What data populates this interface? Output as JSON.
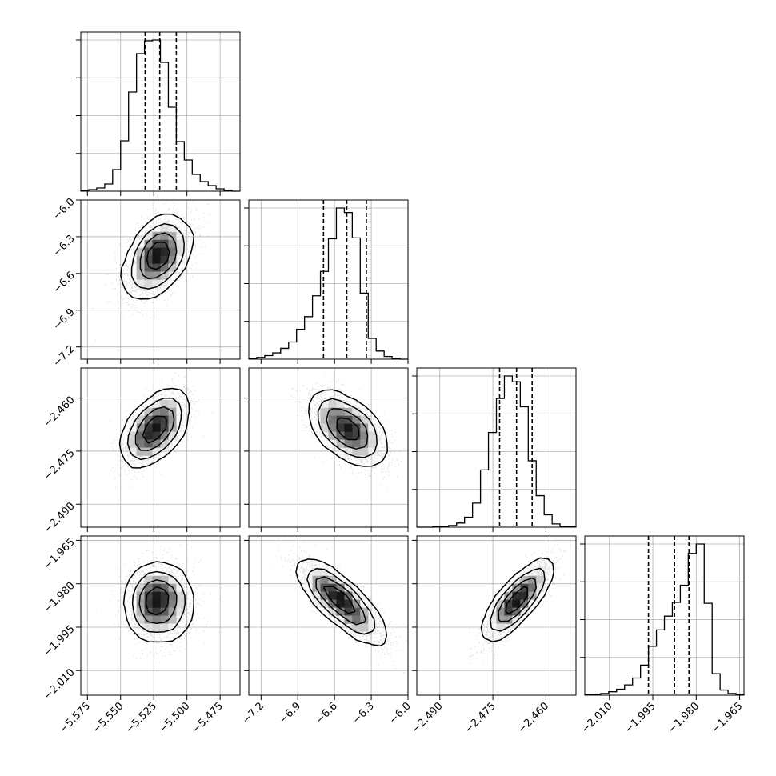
{
  "chart_data": {
    "type": "corner",
    "description_free": true,
    "title": "",
    "params": [
      {
        "ticks": [
          -5.575,
          -5.55,
          -5.525,
          -5.5,
          -5.475
        ],
        "tick_labels": [
          "−5.575",
          "−5.550",
          "−5.525",
          "−5.500",
          "−5.475"
        ],
        "range": [
          -5.58,
          -5.46
        ],
        "quantiles": [
          -5.5315,
          -5.5205,
          -5.508
        ],
        "hist": [
          1,
          2,
          4,
          9,
          27,
          63,
          124,
          172,
          188,
          189,
          161,
          105,
          62,
          39,
          21,
          12,
          7,
          3,
          1,
          0
        ]
      },
      {
        "ticks": [
          -7.2,
          -6.9,
          -6.6,
          -6.3,
          -6.0
        ],
        "tick_labels": [
          "−7.2",
          "−6.9",
          "−6.6",
          "−6.3",
          "−6.0"
        ],
        "range": [
          -7.3,
          -6.0
        ],
        "quantiles": [
          -6.69,
          -6.5,
          -6.34
        ],
        "hist": [
          1,
          2,
          4,
          7,
          12,
          19,
          33,
          47,
          70,
          97,
          133,
          167,
          162,
          134,
          73,
          23,
          9,
          3,
          1,
          0
        ]
      },
      {
        "ticks": [
          -2.49,
          -2.475,
          -2.46
        ],
        "tick_labels": [
          "−2.490",
          "−2.475",
          "−2.460"
        ],
        "range": [
          -2.4965,
          -2.4515
        ],
        "quantiles": [
          -2.4731,
          -2.4683,
          -2.4639
        ],
        "hist": [
          0,
          0,
          1,
          1,
          2,
          5,
          12,
          29,
          69,
          114,
          155,
          182,
          175,
          145,
          80,
          38,
          15,
          4,
          1,
          1
        ]
      },
      {
        "ticks": [
          -2.01,
          -1.995,
          -1.98,
          -1.965
        ],
        "tick_labels": [
          "−2.010",
          "−1.995",
          "−1.980",
          "−1.965"
        ],
        "range": [
          -2.0185,
          -1.9635
        ],
        "quantiles": [
          -1.9965,
          -1.9875,
          -1.9825
        ],
        "hist": [
          1,
          1,
          2,
          4,
          7,
          12,
          20,
          35,
          57,
          76,
          92,
          108,
          128,
          165,
          176,
          107,
          25,
          6,
          2,
          1
        ]
      }
    ],
    "panels_2d": [
      {
        "row": 1,
        "col": 0,
        "mean": [
          -5.522,
          -6.46
        ],
        "sd": [
          0.012,
          0.16
        ],
        "corr": 0.45
      },
      {
        "row": 2,
        "col": 0,
        "mean": [
          -5.524,
          -2.4685
        ],
        "sd": [
          0.0115,
          0.0049
        ],
        "corr": 0.55
      },
      {
        "row": 2,
        "col": 1,
        "mean": [
          -6.5,
          -2.4686
        ],
        "sd": [
          0.15,
          0.0048
        ],
        "corr": -0.55
      },
      {
        "row": 3,
        "col": 0,
        "mean": [
          -5.522,
          -1.9865
        ],
        "sd": [
          0.012,
          0.0065
        ],
        "corr": 0.0
      },
      {
        "row": 3,
        "col": 1,
        "mean": [
          -6.55,
          -1.986
        ],
        "sd": [
          0.17,
          0.0068
        ],
        "corr": -0.85
      },
      {
        "row": 3,
        "col": 2,
        "mean": [
          -2.4683,
          -1.986
        ],
        "sd": [
          0.0045,
          0.0065
        ],
        "corr": 0.85
      }
    ],
    "grid": true,
    "xlabel": "",
    "ylabel": ""
  }
}
